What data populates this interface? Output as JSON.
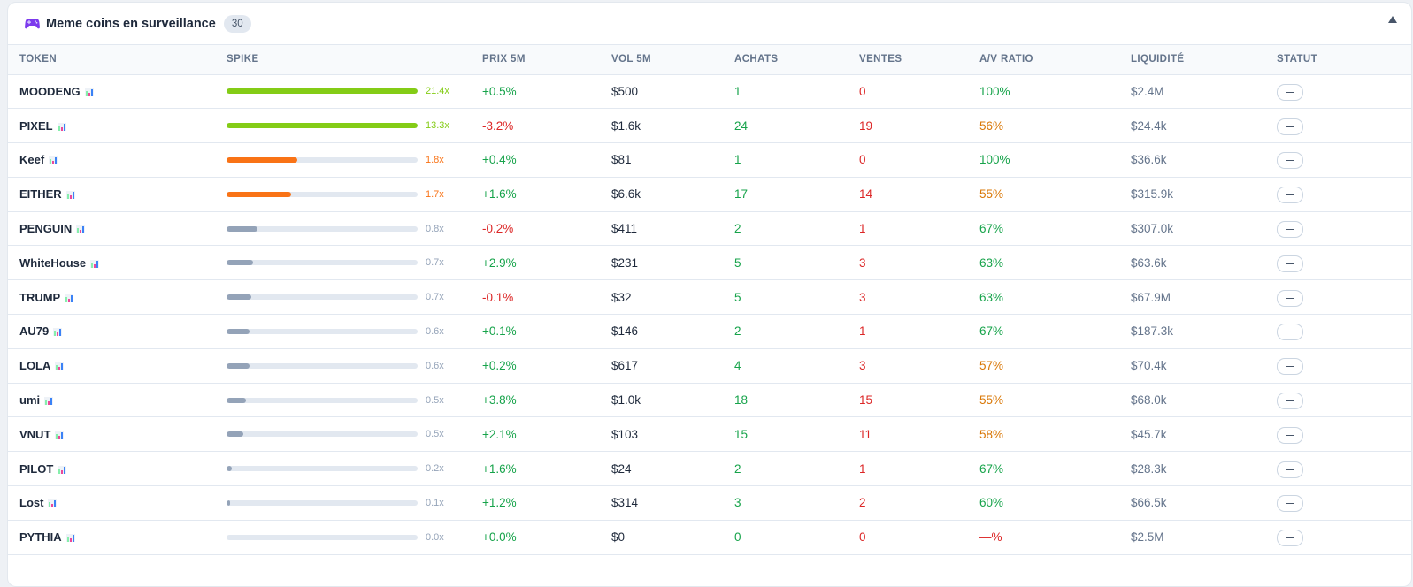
{
  "panel": {
    "title": "Meme coins en surveillance",
    "count": "30",
    "icon": "gamepad-icon",
    "collapse_icon": "triangle-up-icon"
  },
  "columns": [
    "TOKEN",
    "SPIKE",
    "PRIX 5M",
    "VOL 5M",
    "ACHATS",
    "VENTES",
    "A/V RATIO",
    "LIQUIDITÉ",
    "STATUT"
  ],
  "colors": {
    "positive": "#16a34a",
    "negative": "#dc2626",
    "warning": "#d97706",
    "spike_high": "#84cc16",
    "spike_mid": "#f97316",
    "spike_low": "#94a3b8",
    "track": "#e2e8f0"
  },
  "rows": [
    {
      "token": "MOODENG",
      "spike": "21.4x",
      "spike_pct": 100,
      "spike_level": "high",
      "price_5m": "+0.5%",
      "price_dir": "pos",
      "vol_5m": "$500",
      "buys": "1",
      "sells": "0",
      "ratio": "100%",
      "ratio_level": "pos",
      "liquidity": "$2.4M",
      "status": "—"
    },
    {
      "token": "PIXEL",
      "spike": "13.3x",
      "spike_pct": 100,
      "spike_level": "high",
      "price_5m": "-3.2%",
      "price_dir": "neg",
      "vol_5m": "$1.6k",
      "buys": "24",
      "sells": "19",
      "ratio": "56%",
      "ratio_level": "warn",
      "liquidity": "$24.4k",
      "status": "—"
    },
    {
      "token": "Keef",
      "spike": "1.8x",
      "spike_pct": 37,
      "spike_level": "mid",
      "price_5m": "+0.4%",
      "price_dir": "pos",
      "vol_5m": "$81",
      "buys": "1",
      "sells": "0",
      "ratio": "100%",
      "ratio_level": "pos",
      "liquidity": "$36.6k",
      "status": "—"
    },
    {
      "token": "EITHER",
      "spike": "1.7x",
      "spike_pct": 34,
      "spike_level": "mid",
      "price_5m": "+1.6%",
      "price_dir": "pos",
      "vol_5m": "$6.6k",
      "buys": "17",
      "sells": "14",
      "ratio": "55%",
      "ratio_level": "warn",
      "liquidity": "$315.9k",
      "status": "—"
    },
    {
      "token": "PENGUIN",
      "spike": "0.8x",
      "spike_pct": 16,
      "spike_level": "low",
      "price_5m": "-0.2%",
      "price_dir": "neg",
      "vol_5m": "$411",
      "buys": "2",
      "sells": "1",
      "ratio": "67%",
      "ratio_level": "pos",
      "liquidity": "$307.0k",
      "status": "—"
    },
    {
      "token": "WhiteHouse",
      "spike": "0.7x",
      "spike_pct": 14,
      "spike_level": "low",
      "price_5m": "+2.9%",
      "price_dir": "pos",
      "vol_5m": "$231",
      "buys": "5",
      "sells": "3",
      "ratio": "63%",
      "ratio_level": "pos",
      "liquidity": "$63.6k",
      "status": "—"
    },
    {
      "token": "TRUMP",
      "spike": "0.7x",
      "spike_pct": 13,
      "spike_level": "low",
      "price_5m": "-0.1%",
      "price_dir": "neg",
      "vol_5m": "$32",
      "buys": "5",
      "sells": "3",
      "ratio": "63%",
      "ratio_level": "pos",
      "liquidity": "$67.9M",
      "status": "—"
    },
    {
      "token": "AU79",
      "spike": "0.6x",
      "spike_pct": 12,
      "spike_level": "low",
      "price_5m": "+0.1%",
      "price_dir": "pos",
      "vol_5m": "$146",
      "buys": "2",
      "sells": "1",
      "ratio": "67%",
      "ratio_level": "pos",
      "liquidity": "$187.3k",
      "status": "—"
    },
    {
      "token": "LOLA",
      "spike": "0.6x",
      "spike_pct": 12,
      "spike_level": "low",
      "price_5m": "+0.2%",
      "price_dir": "pos",
      "vol_5m": "$617",
      "buys": "4",
      "sells": "3",
      "ratio": "57%",
      "ratio_level": "warn",
      "liquidity": "$70.4k",
      "status": "—"
    },
    {
      "token": "umi",
      "spike": "0.5x",
      "spike_pct": 10,
      "spike_level": "low",
      "price_5m": "+3.8%",
      "price_dir": "pos",
      "vol_5m": "$1.0k",
      "buys": "18",
      "sells": "15",
      "ratio": "55%",
      "ratio_level": "warn",
      "liquidity": "$68.0k",
      "status": "—"
    },
    {
      "token": "VNUT",
      "spike": "0.5x",
      "spike_pct": 9,
      "spike_level": "low",
      "price_5m": "+2.1%",
      "price_dir": "pos",
      "vol_5m": "$103",
      "buys": "15",
      "sells": "11",
      "ratio": "58%",
      "ratio_level": "warn",
      "liquidity": "$45.7k",
      "status": "—"
    },
    {
      "token": "PILOT",
      "spike": "0.2x",
      "spike_pct": 3,
      "spike_level": "low",
      "price_5m": "+1.6%",
      "price_dir": "pos",
      "vol_5m": "$24",
      "buys": "2",
      "sells": "1",
      "ratio": "67%",
      "ratio_level": "pos",
      "liquidity": "$28.3k",
      "status": "—"
    },
    {
      "token": "Lost",
      "spike": "0.1x",
      "spike_pct": 2,
      "spike_level": "low",
      "price_5m": "+1.2%",
      "price_dir": "pos",
      "vol_5m": "$314",
      "buys": "3",
      "sells": "2",
      "ratio": "60%",
      "ratio_level": "pos",
      "liquidity": "$66.5k",
      "status": "—"
    },
    {
      "token": "PYTHIA",
      "spike": "0.0x",
      "spike_pct": 0,
      "spike_level": "low",
      "price_5m": "+0.0%",
      "price_dir": "pos",
      "vol_5m": "$0",
      "buys": "0",
      "sells": "0",
      "ratio": "—%",
      "ratio_level": "neg",
      "liquidity": "$2.5M",
      "status": "—"
    }
  ]
}
